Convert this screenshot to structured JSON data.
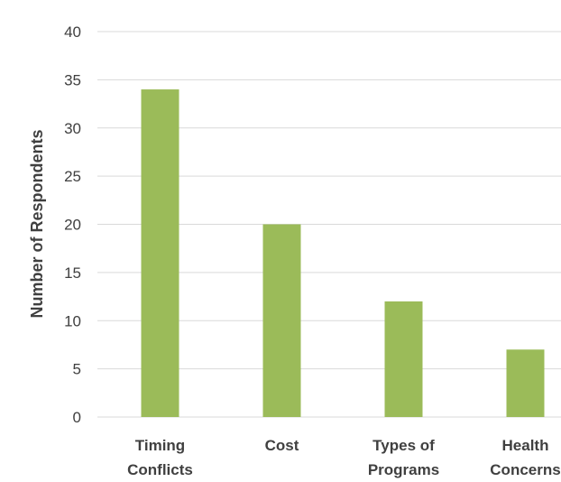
{
  "chart_data": {
    "type": "bar",
    "categories": [
      [
        "Timing",
        "Conflicts"
      ],
      [
        "Cost"
      ],
      [
        "Types of",
        "Programs"
      ],
      [
        "Health",
        "Concerns"
      ]
    ],
    "values": [
      34,
      20,
      12,
      7
    ],
    "title": "",
    "xlabel": "",
    "ylabel": "Number of Respondents",
    "ylim": [
      0,
      40
    ],
    "yticks": [
      0,
      5,
      10,
      15,
      20,
      25,
      30,
      35,
      40
    ],
    "grid": true,
    "bar_color": "#9bbb59"
  }
}
